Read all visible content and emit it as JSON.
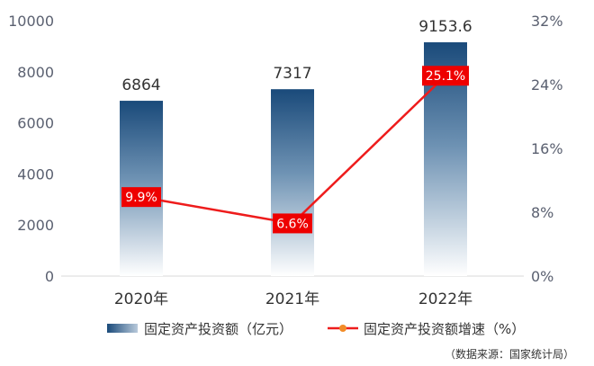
{
  "chart_data": {
    "type": "bar",
    "categories": [
      "2020年",
      "2021年",
      "2022年"
    ],
    "series": [
      {
        "name": "固定资产投资额（亿元）",
        "type": "bar",
        "axis": "left",
        "values": [
          6864,
          7317,
          9153.6
        ],
        "labels": [
          "6864",
          "7317",
          "9153.6"
        ]
      },
      {
        "name": "固定资产投资额增速（%）",
        "type": "line",
        "axis": "right",
        "values": [
          9.9,
          6.6,
          25.1
        ],
        "labels": [
          "9.9%",
          "6.6%",
          "25.1%"
        ]
      }
    ],
    "y_left": {
      "min": 0,
      "max": 10000,
      "ticks": [
        "0",
        "2000",
        "4000",
        "6000",
        "8000",
        "10000"
      ]
    },
    "y_right": {
      "min": 0,
      "max": 32,
      "ticks": [
        "0%",
        "8%",
        "16%",
        "24%",
        "32%"
      ]
    },
    "legend_position": "bottom",
    "grid": false,
    "colors": {
      "bar_top": "#1a4a7a",
      "bar_bottom": "#ffffff",
      "line": "#ee1c1c",
      "label_bg": "#ee0000",
      "marker": "#f28c28"
    },
    "source": "（数据来源：国家统计局）"
  }
}
